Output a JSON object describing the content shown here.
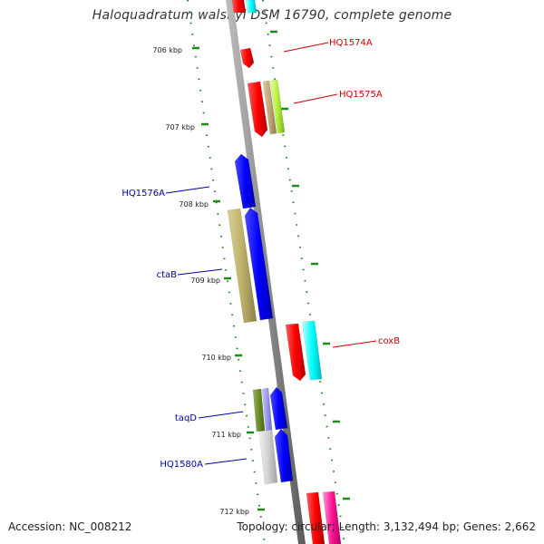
{
  "title": "Haloquadratum walsbyi DSM 16790, complete genome",
  "footer": {
    "accession": "Accession: NC_008212",
    "summary": "Topology: circular; Length: 3,132,494 bp; Genes: 2,662"
  },
  "colors": {
    "backbone": "#8c8c8c",
    "tick": "#1e8a1e",
    "forward_label": "#cc0000",
    "reverse_label": "#0000aa"
  },
  "scale_labels": [
    "706 kbp",
    "707 kbp",
    "708 kbp",
    "709 kbp",
    "710 kbp",
    "711 kbp",
    "712 kbp"
  ],
  "gene_labels": [
    {
      "name": "HQ1574A",
      "strand": "forward"
    },
    {
      "name": "HQ1575A",
      "strand": "forward"
    },
    {
      "name": "HQ1576A",
      "strand": "reverse"
    },
    {
      "name": "ctaB",
      "strand": "reverse"
    },
    {
      "name": "coxB",
      "strand": "forward"
    },
    {
      "name": "taqD",
      "strand": "reverse"
    },
    {
      "name": "HQ1580A",
      "strand": "reverse"
    }
  ]
}
